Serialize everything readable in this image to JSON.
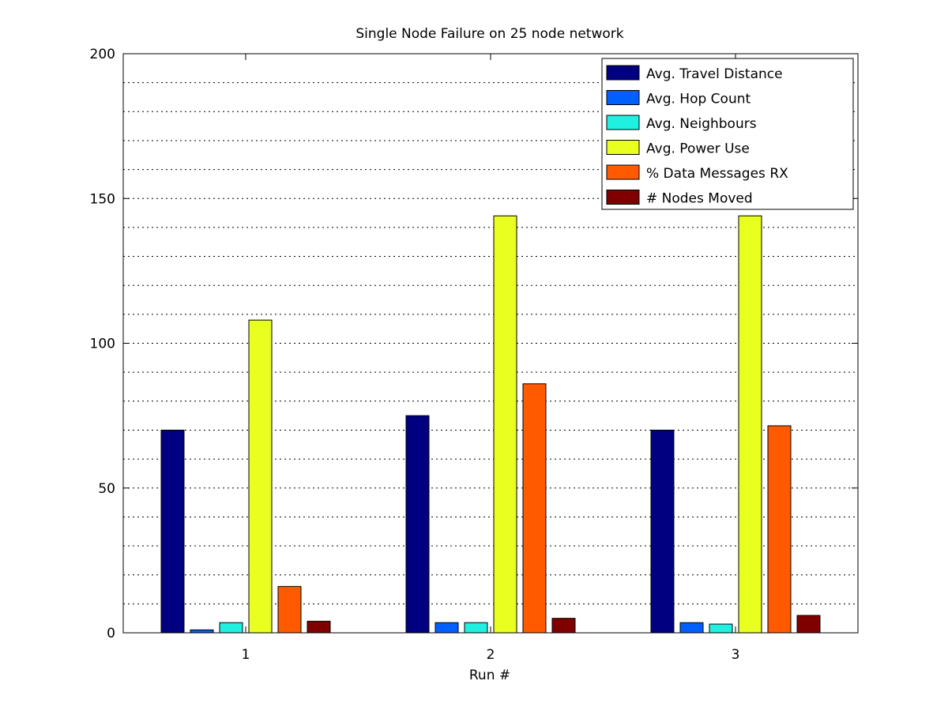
{
  "chart_data": {
    "type": "bar",
    "title": "Single Node Failure on 25 node network",
    "xlabel": "Run #",
    "ylabel": "",
    "categories": [
      "1",
      "2",
      "3"
    ],
    "ylim": [
      0,
      200
    ],
    "yticks": [
      "0",
      "50",
      "100",
      "150",
      "200"
    ],
    "grid": "y-minor-dotted",
    "legend_position": "top-right",
    "series": [
      {
        "name": "Avg. Travel Distance",
        "color": "#000080",
        "values": [
          70,
          75,
          70
        ]
      },
      {
        "name": "Avg. Hop Count",
        "color": "#0060ff",
        "values": [
          1,
          3.5,
          3.5
        ]
      },
      {
        "name": "Avg. Neighbours",
        "color": "#20f0e0",
        "values": [
          3.5,
          3.5,
          3
        ]
      },
      {
        "name": "Avg. Power Use",
        "color": "#e8ff20",
        "values": [
          108,
          144,
          144
        ]
      },
      {
        "name": "% Data Messages RX",
        "color": "#ff5a00",
        "values": [
          16,
          86,
          71.5
        ]
      },
      {
        "name": "# Nodes Moved",
        "color": "#800000",
        "values": [
          4,
          5,
          6
        ]
      }
    ]
  }
}
